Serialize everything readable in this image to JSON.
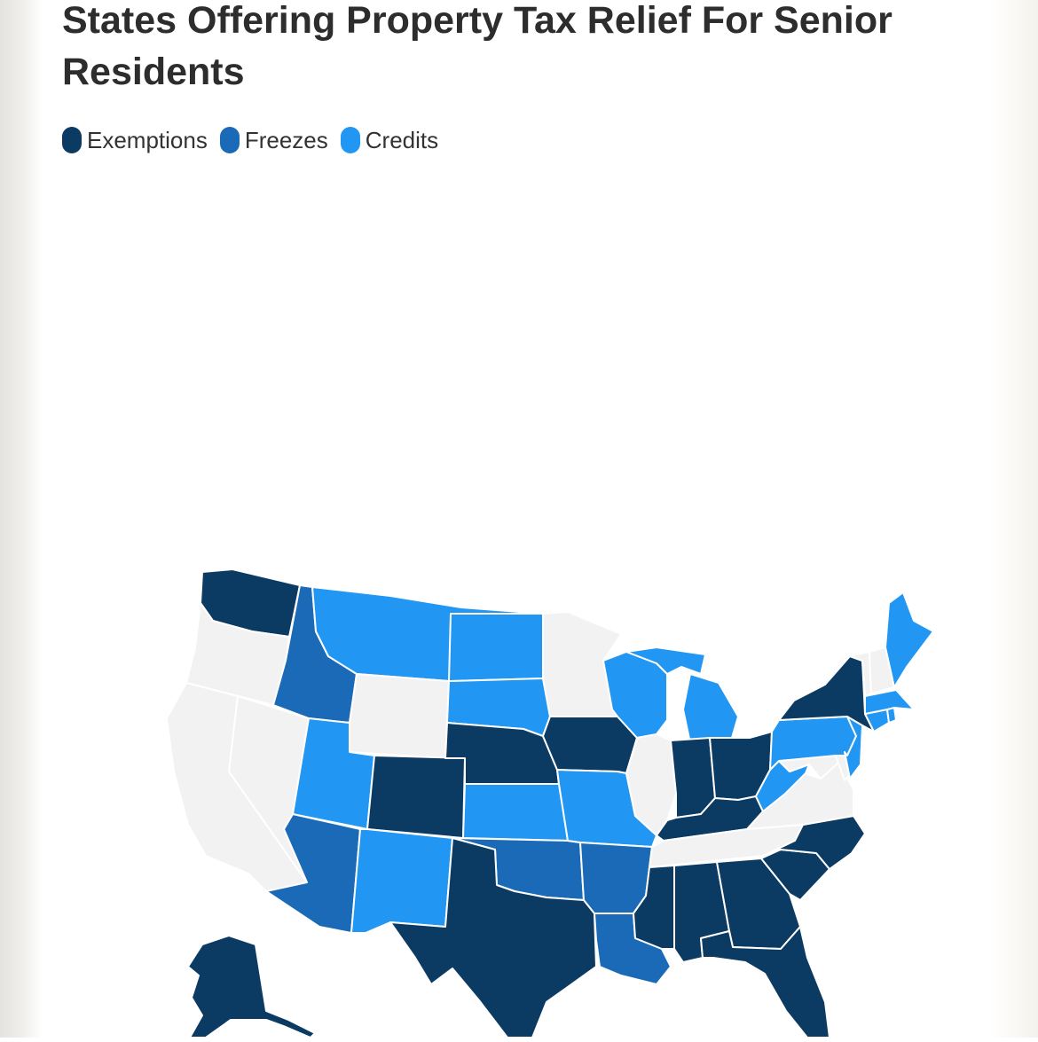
{
  "title": "States Offering Property Tax Relief For Senior Residents",
  "colors": {
    "exemptions": "#0b3a62",
    "freezes": "#1a6ab8",
    "credits": "#2196f3",
    "none": "#f2f2f2"
  },
  "legend": [
    {
      "label": "Exemptions",
      "category": "exemptions"
    },
    {
      "label": "Freezes",
      "category": "freezes"
    },
    {
      "label": "Credits",
      "category": "credits"
    }
  ],
  "states": {
    "WA": "exemptions",
    "OR": "none",
    "CA": "none",
    "NV": "none",
    "ID": "freezes",
    "MT": "credits",
    "WY": "none",
    "UT": "credits",
    "AZ": "freezes",
    "CO": "exemptions",
    "NM": "credits",
    "ND": "credits",
    "SD": "credits",
    "NE": "exemptions",
    "KS": "credits",
    "OK": "freezes",
    "TX": "exemptions",
    "MN": "none",
    "IA": "exemptions",
    "MO": "credits",
    "AR": "freezes",
    "LA": "freezes",
    "WI": "credits",
    "IL": "none",
    "MI": "credits",
    "IN": "exemptions",
    "OH": "exemptions",
    "KY": "exemptions",
    "TN": "none",
    "MS": "exemptions",
    "AL": "exemptions",
    "GA": "exemptions",
    "FL": "exemptions",
    "SC": "exemptions",
    "NC": "exemptions",
    "VA": "none",
    "WV": "credits",
    "MD": "none",
    "DE": "none",
    "PA": "credits",
    "NJ": "credits",
    "NY": "exemptions",
    "CT": "credits",
    "RI": "credits",
    "MA": "credits",
    "VT": "none",
    "NH": "none",
    "ME": "credits",
    "AK": "exemptions"
  }
}
